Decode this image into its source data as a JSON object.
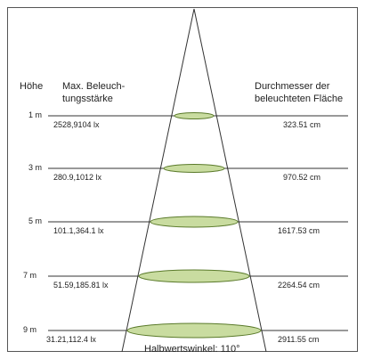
{
  "header": {
    "height_label": "Höhe",
    "illuminance_line1": "Max. Beleuch-",
    "illuminance_line2": "tungsstärke",
    "diameter_line1": "Durchmesser der",
    "diameter_line2": "beleuchteten Fläche"
  },
  "rows": [
    {
      "height": "1 m",
      "illuminance": "2528,9104 lx",
      "diameter": "323.51 cm"
    },
    {
      "height": "3 m",
      "illuminance": "280.9,1012 lx",
      "diameter": "970.52 cm"
    },
    {
      "height": "5 m",
      "illuminance": "101.1,364.1 lx",
      "diameter": "1617.53 cm"
    },
    {
      "height": "7 m",
      "illuminance": "51.59,185.81 lx",
      "diameter": "2264.54 cm"
    },
    {
      "height": "9 m",
      "illuminance": "31.21,112.4 lx",
      "diameter": "2911.55 cm"
    }
  ],
  "beam_angle_label": "Halbwertswinkel: 110°",
  "colors": {
    "ellipse_fill": "#c9dca0",
    "ellipse_stroke": "#5a7a2a",
    "line": "#333333"
  }
}
